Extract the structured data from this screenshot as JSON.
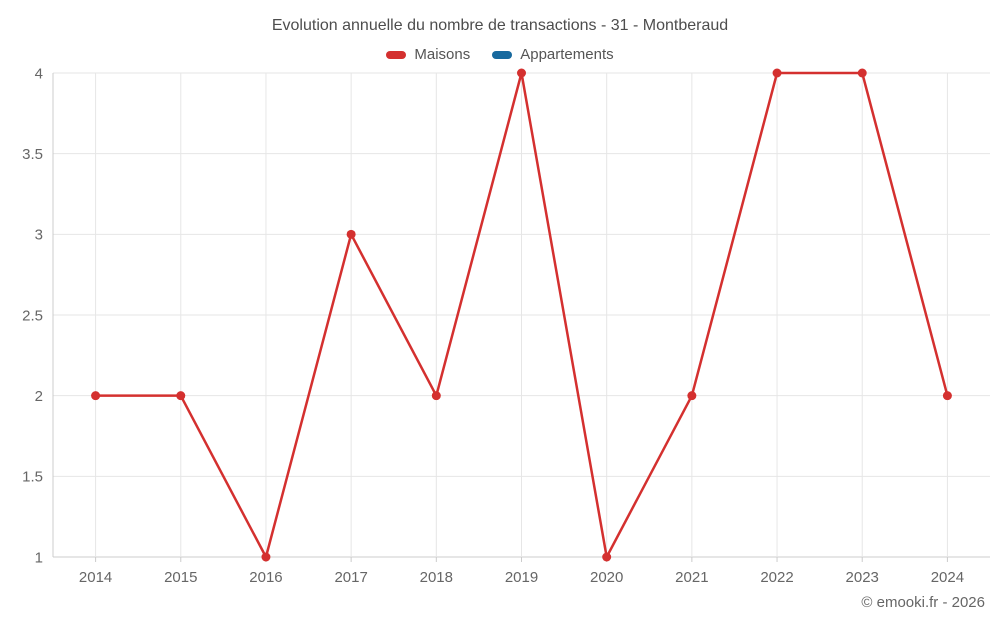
{
  "chart": {
    "title": "Evolution annuelle du nombre de transactions - 31 - Montberaud"
  },
  "footer": {
    "credit": "© emooki.fr - 2026"
  },
  "chart_data": {
    "type": "line",
    "title": "Evolution annuelle du nombre de transactions - 31 - Montberaud",
    "categories": [
      "2014",
      "2015",
      "2016",
      "2017",
      "2018",
      "2019",
      "2020",
      "2021",
      "2022",
      "2023",
      "2024"
    ],
    "series": [
      {
        "name": "Maisons",
        "color": "#d4302f",
        "values": [
          2,
          2,
          1,
          3,
          2,
          4,
          1,
          2,
          4,
          4,
          2
        ]
      },
      {
        "name": "Appartements",
        "color": "#17699e",
        "values": []
      }
    ],
    "xlabel": "",
    "ylabel": "",
    "ylim": [
      1,
      4
    ],
    "yticks": [
      1,
      1.5,
      2,
      2.5,
      3,
      3.5,
      4
    ],
    "grid": true,
    "legend_position": "top",
    "style": {
      "grid_color": "#e6e6e6",
      "axis_color": "#cccccc",
      "tick_text_color": "#666666",
      "marker_radius": 4.5,
      "line_width": 2.5
    }
  }
}
